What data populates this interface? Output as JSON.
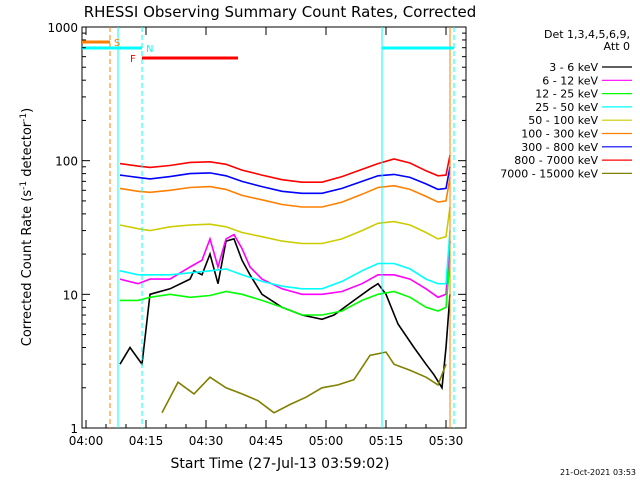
{
  "chart_data": {
    "type": "line",
    "title": "RHESSI Observing Summary Count Rates, Corrected",
    "xlabel": "Start Time (27-Jul-13 03:59:02)",
    "ylabel_main": "Corrected Count Rate (s",
    "ylabel_sup1": "-1",
    "ylabel_mid": " detector",
    "ylabel_sup2": "-1",
    "ylabel_end": ")",
    "y_scale": "log",
    "ylim": [
      1,
      1000
    ],
    "xlim_minutes": [
      0,
      96
    ],
    "x_ticks": [
      {
        "m": 1,
        "label": "04:00"
      },
      {
        "m": 16,
        "label": "04:15"
      },
      {
        "m": 31,
        "label": "04:30"
      },
      {
        "m": 46,
        "label": "04:45"
      },
      {
        "m": 61,
        "label": "05:00"
      },
      {
        "m": 76,
        "label": "05:15"
      },
      {
        "m": 91,
        "label": "05:30"
      }
    ],
    "y_ticks": [
      {
        "v": 1,
        "label": "1"
      },
      {
        "v": 10,
        "label": "10"
      },
      {
        "v": 100,
        "label": "100"
      },
      {
        "v": 1000,
        "label": "1000"
      }
    ],
    "legend_header": [
      "Det 1,3,4,5,6,9,",
      "Att 0"
    ],
    "series": [
      {
        "name": "3 - 6 keV",
        "color": "#000000",
        "points": [
          [
            9.5,
            3
          ],
          [
            12,
            4
          ],
          [
            15,
            3
          ],
          [
            17,
            10
          ],
          [
            22,
            11
          ],
          [
            27,
            13
          ],
          [
            28,
            15
          ],
          [
            30,
            14
          ],
          [
            32,
            20
          ],
          [
            34,
            12
          ],
          [
            36,
            25
          ],
          [
            38,
            26
          ],
          [
            40,
            18
          ],
          [
            42,
            14
          ],
          [
            45,
            10
          ],
          [
            50,
            8
          ],
          [
            55,
            7
          ],
          [
            60,
            6.5
          ],
          [
            63,
            7
          ],
          [
            68,
            9
          ],
          [
            72,
            11
          ],
          [
            74,
            12
          ],
          [
            76,
            10
          ],
          [
            79,
            6
          ],
          [
            83,
            4
          ],
          [
            86,
            3
          ],
          [
            88,
            2.5
          ],
          [
            90,
            2
          ],
          [
            91,
            4
          ],
          [
            92,
            10
          ]
        ]
      },
      {
        "name": "6 - 12 keV",
        "color": "#ff00ff",
        "points": [
          [
            9.5,
            13
          ],
          [
            14,
            12
          ],
          [
            17,
            13
          ],
          [
            22,
            13
          ],
          [
            27,
            16
          ],
          [
            30,
            18
          ],
          [
            32,
            26
          ],
          [
            34,
            16
          ],
          [
            36,
            26
          ],
          [
            38,
            28
          ],
          [
            40,
            22
          ],
          [
            42,
            16
          ],
          [
            45,
            13
          ],
          [
            50,
            11
          ],
          [
            55,
            10
          ],
          [
            60,
            10
          ],
          [
            65,
            10.5
          ],
          [
            70,
            12
          ],
          [
            74,
            14
          ],
          [
            78,
            14
          ],
          [
            82,
            13
          ],
          [
            86,
            11
          ],
          [
            89,
            9.5
          ],
          [
            91,
            10
          ],
          [
            92,
            25
          ]
        ]
      },
      {
        "name": "12 - 25 keV",
        "color": "#00ff00",
        "points": [
          [
            9.5,
            9
          ],
          [
            14,
            9
          ],
          [
            17,
            9.5
          ],
          [
            22,
            10
          ],
          [
            27,
            9.5
          ],
          [
            32,
            9.8
          ],
          [
            36,
            10.5
          ],
          [
            40,
            10
          ],
          [
            45,
            9
          ],
          [
            50,
            8
          ],
          [
            55,
            7
          ],
          [
            60,
            7
          ],
          [
            65,
            7.5
          ],
          [
            70,
            9
          ],
          [
            74,
            10
          ],
          [
            78,
            10.5
          ],
          [
            82,
            9.5
          ],
          [
            86,
            8
          ],
          [
            89,
            7.5
          ],
          [
            91,
            8
          ],
          [
            92,
            18
          ]
        ]
      },
      {
        "name": "25 - 50 keV",
        "color": "#00ffff",
        "points": [
          [
            9.5,
            15
          ],
          [
            14,
            14
          ],
          [
            17,
            14
          ],
          [
            22,
            14
          ],
          [
            27,
            14.5
          ],
          [
            32,
            15
          ],
          [
            36,
            15.5
          ],
          [
            40,
            14
          ],
          [
            45,
            12.5
          ],
          [
            50,
            11.5
          ],
          [
            55,
            11
          ],
          [
            60,
            11
          ],
          [
            65,
            12.5
          ],
          [
            70,
            15
          ],
          [
            74,
            17
          ],
          [
            78,
            17
          ],
          [
            82,
            15.5
          ],
          [
            86,
            13
          ],
          [
            89,
            12
          ],
          [
            91,
            12
          ],
          [
            92,
            30
          ]
        ]
      },
      {
        "name": "50 - 100 keV",
        "color": "#cccc00",
        "points": [
          [
            9.5,
            33
          ],
          [
            14,
            31
          ],
          [
            17,
            30
          ],
          [
            22,
            32
          ],
          [
            27,
            33
          ],
          [
            32,
            33.5
          ],
          [
            36,
            32
          ],
          [
            40,
            29
          ],
          [
            45,
            27
          ],
          [
            50,
            25
          ],
          [
            55,
            24
          ],
          [
            60,
            24
          ],
          [
            65,
            26
          ],
          [
            70,
            30
          ],
          [
            74,
            34
          ],
          [
            78,
            35
          ],
          [
            82,
            33
          ],
          [
            86,
            29
          ],
          [
            89,
            26
          ],
          [
            91,
            27
          ],
          [
            92,
            45
          ]
        ]
      },
      {
        "name": "100 - 300 keV",
        "color": "#ff8000",
        "points": [
          [
            9.5,
            62
          ],
          [
            14,
            59
          ],
          [
            17,
            58
          ],
          [
            22,
            60
          ],
          [
            27,
            63
          ],
          [
            32,
            64
          ],
          [
            36,
            61
          ],
          [
            40,
            55
          ],
          [
            45,
            51
          ],
          [
            50,
            47
          ],
          [
            55,
            45
          ],
          [
            60,
            45
          ],
          [
            65,
            49
          ],
          [
            70,
            56
          ],
          [
            74,
            63
          ],
          [
            78,
            65
          ],
          [
            82,
            61
          ],
          [
            86,
            54
          ],
          [
            89,
            49
          ],
          [
            91,
            50
          ],
          [
            92,
            75
          ]
        ]
      },
      {
        "name": "300 - 800 keV",
        "color": "#0000ff",
        "points": [
          [
            9.5,
            78
          ],
          [
            14,
            75
          ],
          [
            17,
            73
          ],
          [
            22,
            76
          ],
          [
            27,
            80
          ],
          [
            32,
            81
          ],
          [
            36,
            77
          ],
          [
            40,
            70
          ],
          [
            45,
            64
          ],
          [
            50,
            59
          ],
          [
            55,
            57
          ],
          [
            60,
            57
          ],
          [
            65,
            62
          ],
          [
            70,
            70
          ],
          [
            74,
            77
          ],
          [
            78,
            79
          ],
          [
            82,
            75
          ],
          [
            86,
            67
          ],
          [
            89,
            61
          ],
          [
            91,
            62
          ],
          [
            92,
            90
          ]
        ]
      },
      {
        "name": "800 - 7000 keV",
        "color": "#ff0000",
        "points": [
          [
            9.5,
            95
          ],
          [
            14,
            91
          ],
          [
            17,
            89
          ],
          [
            22,
            92
          ],
          [
            27,
            97
          ],
          [
            32,
            98
          ],
          [
            36,
            94
          ],
          [
            40,
            85
          ],
          [
            45,
            78
          ],
          [
            50,
            72
          ],
          [
            55,
            69
          ],
          [
            60,
            69
          ],
          [
            65,
            76
          ],
          [
            70,
            86
          ],
          [
            74,
            95
          ],
          [
            78,
            103
          ],
          [
            82,
            96
          ],
          [
            86,
            84
          ],
          [
            89,
            77
          ],
          [
            91,
            78
          ],
          [
            92,
            110
          ]
        ]
      },
      {
        "name": "7000 - 15000 keV",
        "color": "#808000",
        "points": [
          [
            20,
            1.3
          ],
          [
            24,
            2.2
          ],
          [
            28,
            1.8
          ],
          [
            32,
            2.4
          ],
          [
            36,
            2
          ],
          [
            40,
            1.8
          ],
          [
            44,
            1.6
          ],
          [
            48,
            1.3
          ],
          [
            52,
            1.5
          ],
          [
            56,
            1.7
          ],
          [
            60,
            2
          ],
          [
            64,
            2.1
          ],
          [
            68,
            2.3
          ],
          [
            72,
            3.5
          ],
          [
            76,
            3.7
          ],
          [
            78,
            3
          ],
          [
            82,
            2.7
          ],
          [
            86,
            2.4
          ],
          [
            89,
            2.1
          ],
          [
            91,
            3
          ]
        ]
      }
    ],
    "annotations": [
      {
        "label": "S",
        "color": "#ff8000",
        "bar_from": 0,
        "bar_to": 7
      },
      {
        "label": "N",
        "color": "#00ffff",
        "bar_from": 0,
        "bar_to": 15
      },
      {
        "label": "F",
        "color": "#ff0000",
        "bar_from": 15,
        "bar_to": 39
      },
      {
        "label": "",
        "color": "#00ffff",
        "bar_from": 75,
        "bar_to": 93
      }
    ],
    "vlines": [
      {
        "m": 7,
        "color": "#ff8000",
        "dash": true
      },
      {
        "m": 9,
        "color": "#00ffff",
        "dash": false
      },
      {
        "m": 15,
        "color": "#00ffff",
        "dash": true
      },
      {
        "m": 75,
        "color": "#00ffff",
        "dash": false
      },
      {
        "m": 92,
        "color": "#ff8000",
        "dash": false
      },
      {
        "m": 93,
        "color": "#00ffff",
        "dash": true
      }
    ],
    "grid": false,
    "legend_placement": "right"
  },
  "footer_date": "21-Oct-2021 03:53"
}
